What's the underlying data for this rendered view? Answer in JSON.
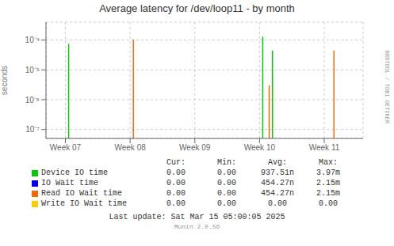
{
  "chart_data": {
    "type": "stem",
    "title": "Average latency for /dev/loop11 - by month",
    "y_label": "seconds",
    "log": "y",
    "grid": true,
    "xlim": [
      -0.3,
      4.6
    ],
    "xticks": [
      {
        "value": 0,
        "label": "Week 07"
      },
      {
        "value": 1,
        "label": "Week 08"
      },
      {
        "value": 2,
        "label": "Week 09"
      },
      {
        "value": 3,
        "label": "Week 10"
      },
      {
        "value": 4,
        "label": "Week 11"
      }
    ],
    "ylim": [
      5e-08,
      0.0004
    ],
    "yticks": [
      {
        "value": 1e-07,
        "label": "10⁻⁷"
      },
      {
        "value": 1e-06,
        "label": "10⁻⁶"
      },
      {
        "value": 1e-05,
        "label": "10⁻⁵"
      },
      {
        "value": 0.0001,
        "label": "10⁻⁴"
      }
    ],
    "series": [
      {
        "name": "Device IO time",
        "color": "#00cc00",
        "x": [
          0.05,
          3.05,
          3.2
        ],
        "values": [
          7.5e-05,
          0.00013,
          4.5e-05
        ],
        "legend_values": [
          "0.00",
          "0.00",
          "937.51n",
          "3.97m"
        ]
      },
      {
        "name": "IO Wait time",
        "color": "#0000ff",
        "x": [],
        "values": [],
        "legend_values": [
          "0.00",
          "0.00",
          "454.27n",
          "2.15m"
        ]
      },
      {
        "name": "Read IO Wait time",
        "color": "#ff6600",
        "x": [
          1.05,
          3.15,
          4.15
        ],
        "values": [
          0.000105,
          3e-06,
          4.5e-05
        ],
        "legend_values": [
          "0.00",
          "0.00",
          "454.27n",
          "2.15m"
        ]
      },
      {
        "name": "Write IO Wait time",
        "color": "#ffcc00",
        "x": [],
        "values": [],
        "legend_values": [
          "0.00",
          "0.00",
          "0.00",
          "0.00"
        ]
      }
    ],
    "legend_headers": [
      "Cur:",
      "Min:",
      "Avg:",
      "Max:"
    ],
    "annotations": [
      "Last update: Sat Mar 15 05:00:05 2025",
      "Munin 2.0.56",
      "RRDTOOL / TOBI OETIKER"
    ]
  }
}
